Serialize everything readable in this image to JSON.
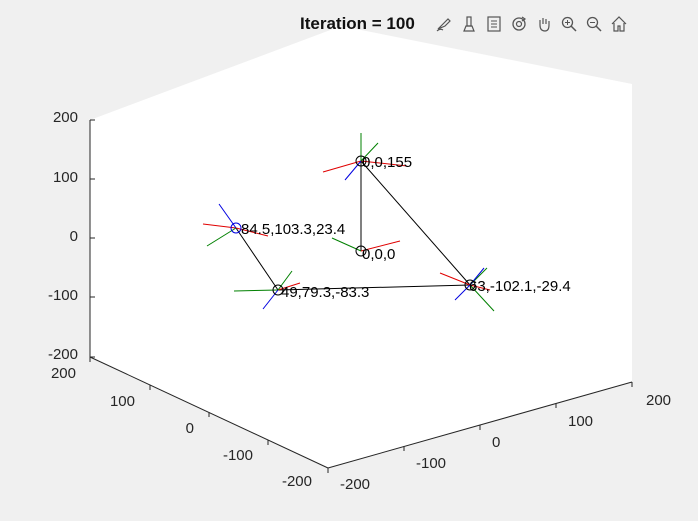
{
  "title": "Iteration = 100",
  "toolbar": [
    {
      "name": "brush-icon",
      "tooltip": "Brush"
    },
    {
      "name": "data-cursor-icon",
      "tooltip": "Data Tips"
    },
    {
      "name": "legend-icon",
      "tooltip": "Insert Legend"
    },
    {
      "name": "rotate-3d-icon",
      "tooltip": "Rotate 3D"
    },
    {
      "name": "pan-icon",
      "tooltip": "Pan"
    },
    {
      "name": "zoom-in-icon",
      "tooltip": "Zoom In"
    },
    {
      "name": "zoom-out-icon",
      "tooltip": "Zoom Out"
    },
    {
      "name": "home-icon",
      "tooltip": "Restore View"
    }
  ],
  "axes": {
    "z_ticks": [
      "200",
      "100",
      "0",
      "-100",
      "-200"
    ],
    "y_ticks": [
      "200",
      "100",
      "0",
      "-100",
      "-200"
    ],
    "x_ticks": [
      "-200",
      "-100",
      "0",
      "100",
      "200"
    ]
  },
  "nodes": [
    {
      "label": "0,0,155"
    },
    {
      "label": "0,0,0"
    },
    {
      "label": "84.5,103.3,23.4"
    },
    {
      "label": "49,79.3,-83.3"
    },
    {
      "label": "63,-102.1,-29.4"
    }
  ],
  "colors": {
    "axis_x": "#e00000",
    "axis_y": "#008000",
    "axis_z": "#0000e0",
    "link": "#000000",
    "box_line": "#c8c8c8"
  }
}
